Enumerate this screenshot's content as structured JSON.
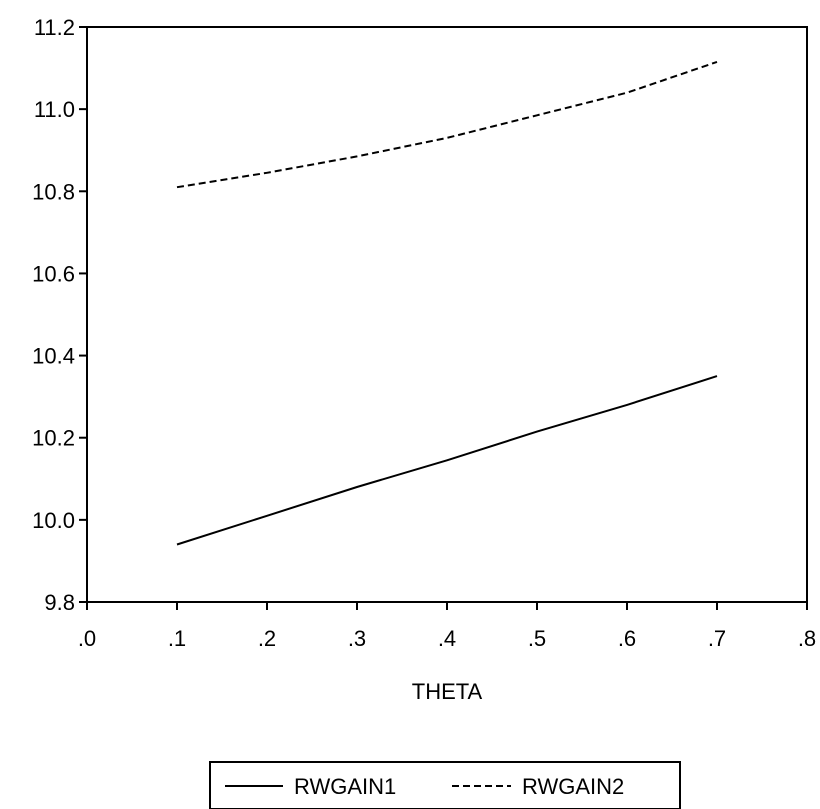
{
  "chart_data": {
    "type": "line",
    "title": "",
    "xlabel": "THETA",
    "ylabel": "",
    "xlim": [
      0.0,
      0.8
    ],
    "ylim": [
      9.8,
      11.2
    ],
    "x_ticks": [
      {
        "value": 0.0,
        "label": ".0"
      },
      {
        "value": 0.1,
        "label": ".1"
      },
      {
        "value": 0.2,
        "label": ".2"
      },
      {
        "value": 0.3,
        "label": ".3"
      },
      {
        "value": 0.4,
        "label": ".4"
      },
      {
        "value": 0.5,
        "label": ".5"
      },
      {
        "value": 0.6,
        "label": ".6"
      },
      {
        "value": 0.7,
        "label": ".7"
      },
      {
        "value": 0.8,
        "label": ".8"
      }
    ],
    "y_ticks": [
      {
        "value": 9.8,
        "label": "9.8"
      },
      {
        "value": 10.0,
        "label": "10.0"
      },
      {
        "value": 10.2,
        "label": "10.2"
      },
      {
        "value": 10.4,
        "label": "10.4"
      },
      {
        "value": 10.6,
        "label": "10.6"
      },
      {
        "value": 10.8,
        "label": "10.8"
      },
      {
        "value": 11.0,
        "label": "11.0"
      },
      {
        "value": 11.2,
        "label": "11.2"
      }
    ],
    "grid": false,
    "legend_position": "bottom",
    "x": [
      0.1,
      0.2,
      0.3,
      0.4,
      0.5,
      0.6,
      0.7
    ],
    "series": [
      {
        "name": "RWGAIN1",
        "style": "solid",
        "color": "#000000",
        "values": [
          9.94,
          10.01,
          10.08,
          10.145,
          10.215,
          10.28,
          10.35
        ]
      },
      {
        "name": "RWGAIN2",
        "style": "dashed",
        "color": "#000000",
        "values": [
          10.81,
          10.845,
          10.885,
          10.93,
          10.985,
          11.04,
          11.115
        ]
      }
    ]
  }
}
